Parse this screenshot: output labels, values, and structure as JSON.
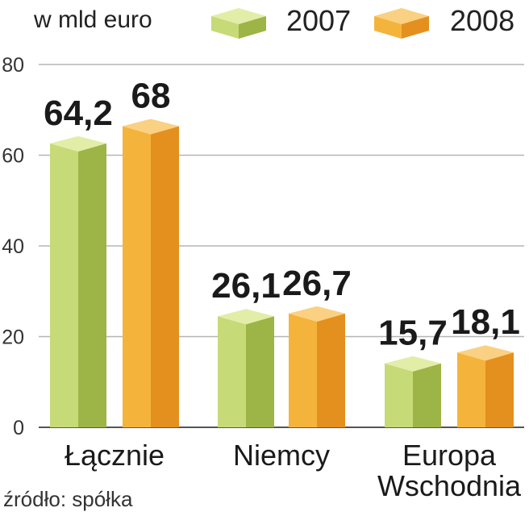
{
  "colors": {
    "2007": {
      "front": "#c6da78",
      "side": "#9db446",
      "top": "#e2eda8"
    },
    "2008": {
      "front": "#f4b43c",
      "side": "#e4901e",
      "top": "#fad082"
    },
    "grid": "#b5b5b5",
    "text": "#1a1a1a"
  },
  "chart_data": {
    "type": "bar",
    "unit_label": "w mld euro",
    "categories": [
      [
        "Łącznie"
      ],
      [
        "Niemcy"
      ],
      [
        "Europa",
        "Wschodnia"
      ]
    ],
    "series": [
      {
        "name": "2007",
        "values": [
          64.2,
          26.1,
          15.7
        ],
        "labels": [
          "64,2",
          "26,1",
          "15,7"
        ]
      },
      {
        "name": "2008",
        "values": [
          68,
          26.7,
          18.1
        ],
        "labels": [
          "68",
          "26,7",
          "18,1"
        ]
      }
    ],
    "yticks": [
      "0",
      "20",
      "40",
      "60",
      "80"
    ],
    "ylim": [
      0,
      80
    ],
    "grid": true,
    "legend_position": "top",
    "source": "źródło: spółka"
  }
}
